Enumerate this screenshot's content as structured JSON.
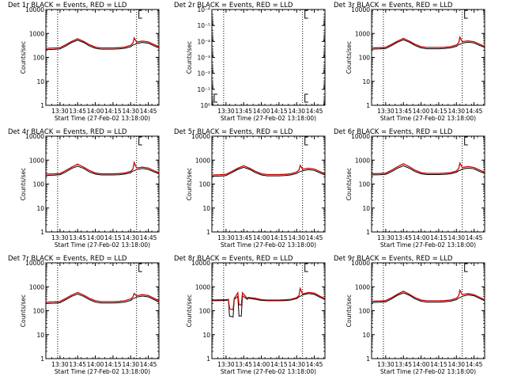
{
  "colors": {
    "events": "#000000",
    "lld": "#cc0000",
    "axis": "#000000",
    "background": "#ffffff"
  },
  "chart_data": [
    {
      "type": "line",
      "title": "Det 1r BLACK = Events, RED = LLD",
      "xlabel": "Start Time (27-Feb-02 13:18:00)",
      "ylabel": "Counts/sec",
      "x_ticks": [
        "13:30",
        "13:45",
        "14:00",
        "14:15",
        "14:30",
        "14:45"
      ],
      "y_ticks": [
        "1",
        "10",
        "100",
        "1000",
        "10000"
      ],
      "ylog": true,
      "ylim": [
        1,
        10000
      ],
      "xlim": [
        "13:18",
        "14:54"
      ],
      "vlines": [
        "13:28",
        "14:35"
      ],
      "markers": [
        "14:37"
      ],
      "x": [
        "13:18",
        "13:25",
        "13:30",
        "13:35",
        "13:40",
        "13:45",
        "13:50",
        "13:55",
        "14:00",
        "14:05",
        "14:10",
        "14:15",
        "14:20",
        "14:25",
        "14:30",
        "14:32",
        "14:33",
        "14:35",
        "14:40",
        "14:45",
        "14:50",
        "14:54"
      ],
      "series": [
        {
          "name": "Events",
          "values": [
            210,
            215,
            225,
            300,
            420,
            520,
            420,
            300,
            240,
            220,
            220,
            220,
            225,
            240,
            280,
            330,
            340,
            380,
            420,
            390,
            300,
            250
          ]
        },
        {
          "name": "LLD",
          "values": [
            240,
            245,
            255,
            340,
            470,
            600,
            470,
            340,
            270,
            250,
            250,
            250,
            255,
            270,
            320,
            400,
            650,
            440,
            480,
            440,
            340,
            280
          ]
        }
      ]
    },
    {
      "type": "line",
      "title": "Det 2r BLACK = Events, RED = LLD",
      "xlabel": "Start Time (27-Feb-02 13:18:00)",
      "ylabel": "Counts/sec",
      "x_ticks": [
        "13:30",
        "13:45",
        "14:00",
        "14:15",
        "14:30",
        "14:45"
      ],
      "y_ticks": [
        "10⁰",
        "10⁻¹",
        "10⁻²",
        "10⁻³",
        "10⁻⁴",
        "10⁻⁵",
        "10⁻⁶"
      ],
      "ylog": true,
      "inverted": true,
      "ylim": [
        1,
        1e-06
      ],
      "xlim": [
        "13:18",
        "14:54"
      ],
      "vlines": [
        "13:28",
        "14:35"
      ],
      "markers": [
        "13:20",
        "14:37"
      ],
      "series": []
    },
    {
      "type": "line",
      "title": "Det 3r BLACK = Events, RED = LLD",
      "xlabel": "Start Time (27-Feb-02 13:18:00)",
      "ylabel": "Counts/sec",
      "x_ticks": [
        "13:30",
        "13:45",
        "14:00",
        "14:15",
        "14:30",
        "14:45"
      ],
      "y_ticks": [
        "1",
        "10",
        "100",
        "1000",
        "10000"
      ],
      "ylog": true,
      "ylim": [
        1,
        10000
      ],
      "xlim": [
        "13:18",
        "14:54"
      ],
      "vlines": [
        "13:28",
        "14:35"
      ],
      "markers": [
        "14:37"
      ],
      "x": [
        "13:18",
        "13:25",
        "13:30",
        "13:35",
        "13:40",
        "13:45",
        "13:50",
        "13:55",
        "14:00",
        "14:05",
        "14:10",
        "14:15",
        "14:20",
        "14:25",
        "14:30",
        "14:32",
        "14:33",
        "14:35",
        "14:40",
        "14:45",
        "14:50",
        "14:54"
      ],
      "series": [
        {
          "name": "Events",
          "values": [
            220,
            225,
            235,
            310,
            430,
            540,
            430,
            310,
            250,
            230,
            230,
            230,
            235,
            250,
            290,
            340,
            350,
            390,
            430,
            400,
            310,
            260
          ]
        },
        {
          "name": "LLD",
          "values": [
            250,
            255,
            265,
            350,
            480,
            620,
            480,
            350,
            280,
            260,
            260,
            260,
            265,
            280,
            330,
            410,
            700,
            450,
            490,
            450,
            350,
            290
          ]
        }
      ]
    },
    {
      "type": "line",
      "title": "Det 4r BLACK = Events, RED = LLD",
      "xlabel": "Start Time (27-Feb-02 13:18:00)",
      "ylabel": "Counts/sec",
      "x_ticks": [
        "13:30",
        "13:45",
        "14:00",
        "14:15",
        "14:30",
        "14:45"
      ],
      "y_ticks": [
        "1",
        "10",
        "100",
        "1000",
        "10000"
      ],
      "ylog": true,
      "ylim": [
        1,
        10000
      ],
      "xlim": [
        "13:18",
        "14:54"
      ],
      "vlines": [
        "13:28",
        "14:35"
      ],
      "markers": [
        "14:37"
      ],
      "x": [
        "13:18",
        "13:25",
        "13:30",
        "13:35",
        "13:40",
        "13:45",
        "13:50",
        "13:55",
        "14:00",
        "14:05",
        "14:10",
        "14:15",
        "14:20",
        "14:25",
        "14:30",
        "14:32",
        "14:33",
        "14:35",
        "14:40",
        "14:45",
        "14:50",
        "14:54"
      ],
      "series": [
        {
          "name": "Events",
          "values": [
            230,
            235,
            245,
            320,
            450,
            560,
            450,
            320,
            260,
            240,
            240,
            240,
            245,
            260,
            300,
            350,
            360,
            400,
            450,
            410,
            320,
            270
          ]
        },
        {
          "name": "LLD",
          "values": [
            260,
            265,
            275,
            370,
            510,
            680,
            510,
            370,
            290,
            270,
            270,
            270,
            275,
            290,
            340,
            430,
            800,
            470,
            510,
            470,
            360,
            300
          ]
        }
      ]
    },
    {
      "type": "line",
      "title": "Det 5r BLACK = Events, RED = LLD",
      "xlabel": "Start Time (27-Feb-02 13:18:00)",
      "ylabel": "Counts/sec",
      "x_ticks": [
        "13:30",
        "13:45",
        "14:00",
        "14:15",
        "14:30",
        "14:45"
      ],
      "y_ticks": [
        "1",
        "10",
        "100",
        "1000",
        "10000"
      ],
      "ylog": true,
      "ylim": [
        1,
        10000
      ],
      "xlim": [
        "13:18",
        "14:54"
      ],
      "vlines": [
        "13:28",
        "14:35"
      ],
      "markers": [
        "14:37"
      ],
      "x": [
        "13:18",
        "13:25",
        "13:30",
        "13:35",
        "13:40",
        "13:45",
        "13:50",
        "13:55",
        "14:00",
        "14:05",
        "14:10",
        "14:15",
        "14:20",
        "14:25",
        "14:30",
        "14:32",
        "14:33",
        "14:35",
        "14:40",
        "14:45",
        "14:50",
        "14:54"
      ],
      "series": [
        {
          "name": "Events",
          "values": [
            210,
            215,
            225,
            300,
            410,
            500,
            410,
            300,
            240,
            220,
            220,
            220,
            225,
            240,
            280,
            320,
            330,
            360,
            400,
            370,
            290,
            240
          ]
        },
        {
          "name": "LLD",
          "values": [
            240,
            245,
            255,
            340,
            460,
            580,
            460,
            340,
            270,
            250,
            250,
            250,
            255,
            270,
            320,
            390,
            600,
            420,
            460,
            420,
            330,
            270
          ]
        }
      ]
    },
    {
      "type": "line",
      "title": "Det 6r BLACK = Events, RED = LLD",
      "xlabel": "Start Time (27-Feb-02 13:18:00)",
      "ylabel": "Counts/sec",
      "x_ticks": [
        "13:30",
        "13:45",
        "14:00",
        "14:15",
        "14:30",
        "14:45"
      ],
      "y_ticks": [
        "1",
        "10",
        "100",
        "1000",
        "10000"
      ],
      "ylog": true,
      "ylim": [
        1,
        10000
      ],
      "xlim": [
        "13:18",
        "14:54"
      ],
      "vlines": [
        "13:28",
        "14:35"
      ],
      "markers": [
        "14:37"
      ],
      "x": [
        "13:18",
        "13:25",
        "13:30",
        "13:35",
        "13:40",
        "13:45",
        "13:50",
        "13:55",
        "14:00",
        "14:05",
        "14:10",
        "14:15",
        "14:20",
        "14:25",
        "14:30",
        "14:32",
        "14:33",
        "14:35",
        "14:40",
        "14:45",
        "14:50",
        "14:54"
      ],
      "series": [
        {
          "name": "Events",
          "values": [
            240,
            245,
            255,
            330,
            460,
            580,
            460,
            330,
            270,
            250,
            250,
            250,
            255,
            270,
            310,
            360,
            370,
            420,
            470,
            430,
            330,
            280
          ]
        },
        {
          "name": "LLD",
          "values": [
            270,
            275,
            285,
            380,
            530,
            700,
            530,
            380,
            300,
            280,
            280,
            280,
            285,
            300,
            350,
            440,
            750,
            490,
            540,
            490,
            380,
            310
          ]
        }
      ]
    },
    {
      "type": "line",
      "title": "Det 7r BLACK = Events, RED = LLD",
      "xlabel": "Start Time (27-Feb-02 13:18:00)",
      "ylabel": "Counts/sec",
      "x_ticks": [
        "13:30",
        "13:45",
        "14:00",
        "14:15",
        "14:30",
        "14:45"
      ],
      "y_ticks": [
        "1",
        "10",
        "100",
        "1000",
        "10000"
      ],
      "ylog": true,
      "ylim": [
        1,
        10000
      ],
      "xlim": [
        "13:18",
        "14:54"
      ],
      "vlines": [
        "13:28",
        "14:35"
      ],
      "markers": [
        "14:37"
      ],
      "x": [
        "13:18",
        "13:25",
        "13:30",
        "13:35",
        "13:40",
        "13:45",
        "13:50",
        "13:55",
        "14:00",
        "14:05",
        "14:10",
        "14:15",
        "14:20",
        "14:25",
        "14:30",
        "14:32",
        "14:33",
        "14:35",
        "14:40",
        "14:45",
        "14:50",
        "14:54"
      ],
      "series": [
        {
          "name": "Events",
          "values": [
            200,
            205,
            215,
            290,
            400,
            500,
            400,
            290,
            230,
            210,
            210,
            210,
            215,
            230,
            270,
            320,
            330,
            370,
            410,
            380,
            290,
            230
          ]
        },
        {
          "name": "LLD",
          "values": [
            230,
            235,
            245,
            330,
            450,
            580,
            450,
            330,
            260,
            240,
            240,
            240,
            245,
            260,
            310,
            380,
            520,
            420,
            470,
            430,
            330,
            260
          ]
        }
      ]
    },
    {
      "type": "line",
      "title": "Det 8r BLACK = Events, RED = LLD",
      "xlabel": "Start Time (27-Feb-02 13:18:00)",
      "ylabel": "Counts/sec",
      "x_ticks": [
        "13:30",
        "13:45",
        "14:00",
        "14:15",
        "14:30",
        "14:45"
      ],
      "y_ticks": [
        "1",
        "10",
        "100",
        "1000",
        "10000"
      ],
      "ylog": true,
      "ylim": [
        1,
        10000
      ],
      "xlim": [
        "13:18",
        "14:54"
      ],
      "vlines": [
        "13:28",
        "14:35"
      ],
      "markers": [
        "14:37"
      ],
      "x": [
        "13:18",
        "13:25",
        "13:30",
        "13:32",
        "13:33",
        "13:36",
        "13:37",
        "13:40",
        "13:41",
        "13:43",
        "13:44",
        "13:48",
        "13:49",
        "13:55",
        "14:00",
        "14:05",
        "14:10",
        "14:15",
        "14:20",
        "14:25",
        "14:30",
        "14:32",
        "14:33",
        "14:35",
        "14:40",
        "14:45",
        "14:50",
        "14:54"
      ],
      "series": [
        {
          "name": "Events",
          "values": [
            260,
            265,
            270,
            280,
            60,
            55,
            300,
            400,
            60,
            60,
            420,
            300,
            330,
            300,
            270,
            260,
            260,
            260,
            265,
            280,
            320,
            380,
            400,
            460,
            520,
            480,
            360,
            300
          ]
        },
        {
          "name": "LLD",
          "values": [
            280,
            285,
            290,
            300,
            120,
            110,
            330,
            560,
            180,
            170,
            560,
            330,
            360,
            330,
            290,
            280,
            280,
            280,
            285,
            300,
            350,
            430,
            850,
            500,
            580,
            540,
            400,
            320
          ]
        }
      ]
    },
    {
      "type": "line",
      "title": "Det 9r BLACK = Events, RED = LLD",
      "xlabel": "Start Time (27-Feb-02 13:18:00)",
      "ylabel": "Counts/sec",
      "x_ticks": [
        "13:30",
        "13:45",
        "14:00",
        "14:15",
        "14:30",
        "14:45"
      ],
      "y_ticks": [
        "1",
        "10",
        "100",
        "1000",
        "10000"
      ],
      "ylog": true,
      "ylim": [
        1,
        10000
      ],
      "xlim": [
        "13:18",
        "14:54"
      ],
      "vlines": [
        "13:28",
        "14:35"
      ],
      "markers": [
        "14:37"
      ],
      "x": [
        "13:18",
        "13:25",
        "13:30",
        "13:35",
        "13:40",
        "13:45",
        "13:50",
        "13:55",
        "14:00",
        "14:05",
        "14:10",
        "14:15",
        "14:20",
        "14:25",
        "14:30",
        "14:32",
        "14:33",
        "14:35",
        "14:40",
        "14:45",
        "14:50",
        "14:54"
      ],
      "series": [
        {
          "name": "Events",
          "values": [
            220,
            225,
            235,
            310,
            440,
            560,
            440,
            310,
            250,
            230,
            230,
            230,
            235,
            250,
            290,
            340,
            350,
            400,
            460,
            420,
            320,
            260
          ]
        },
        {
          "name": "LLD",
          "values": [
            250,
            255,
            265,
            350,
            490,
            650,
            490,
            350,
            280,
            260,
            260,
            260,
            265,
            280,
            330,
            420,
            720,
            470,
            520,
            470,
            360,
            290
          ]
        }
      ]
    }
  ]
}
